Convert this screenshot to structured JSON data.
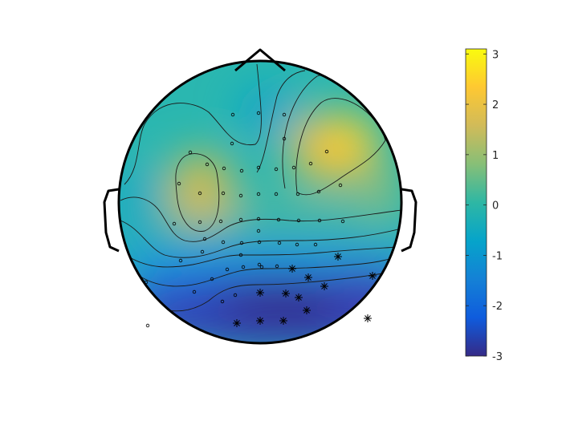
{
  "chart_data": {
    "type": "heatmap",
    "subtype": "scalp-topography",
    "colormap": "parula",
    "colorbar": {
      "min": -3,
      "max": 3.1,
      "ticks": [
        "3",
        "2",
        "1",
        "0",
        "-1",
        "-2",
        "-3"
      ],
      "tick_values": [
        3,
        2,
        1,
        0,
        -1,
        -2,
        -3
      ],
      "colors": [
        "#352a87",
        "#0f5cdd",
        "#1481d6",
        "#06a4ca",
        "#2eb7a4",
        "#87bf77",
        "#d1bb59",
        "#fec832",
        "#f9fb0e"
      ]
    },
    "peaks": [
      {
        "region": "left-frontal",
        "value": 2.2
      },
      {
        "region": "right-frontal",
        "value": 2.6
      },
      {
        "region": "midline-frontal",
        "value": 0.4
      },
      {
        "region": "midline-central",
        "value": 0.6
      },
      {
        "region": "parietal",
        "value": -1.0
      },
      {
        "region": "occipital",
        "value": -2.8
      },
      {
        "region": "right-parieto-occipital",
        "value": -2.3
      },
      {
        "region": "left-temporal",
        "value": -0.3
      },
      {
        "region": "right-temporal",
        "value": 0.3
      }
    ],
    "electrode_markers": {
      "plain": "o",
      "significant": "*",
      "significant_count": 15
    }
  }
}
